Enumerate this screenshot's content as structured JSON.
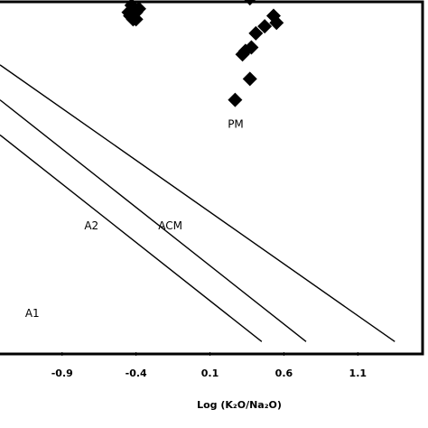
{
  "chart_data": {
    "type": "scatter",
    "title": "",
    "xlabel": "Log (K₂O/Na₂O)",
    "ylabel": "",
    "xlim": [
      -1.32,
      1.55
    ],
    "ylim": [
      0,
      1
    ],
    "grid": false,
    "xticks": [
      {
        "value": -0.9,
        "label": "-0.9"
      },
      {
        "value": -0.4,
        "label": "-0.4"
      },
      {
        "value": 0.1,
        "label": "0.1"
      },
      {
        "value": 0.6,
        "label": "0.6"
      },
      {
        "value": 1.1,
        "label": "1.1"
      }
    ],
    "series": [
      {
        "marker": "diamond",
        "color": "#000000",
        "points": [
          {
            "x": -0.45,
            "y": 0.97
          },
          {
            "x": -0.43,
            "y": 0.99
          },
          {
            "x": -0.4,
            "y": 0.97
          },
          {
            "x": -0.42,
            "y": 0.95
          },
          {
            "x": -0.38,
            "y": 0.98
          },
          {
            "x": -0.44,
            "y": 0.96
          },
          {
            "x": -0.4,
            "y": 0.95
          },
          {
            "x": 0.37,
            "y": 1.01
          },
          {
            "x": 0.47,
            "y": 0.93
          },
          {
            "x": 0.53,
            "y": 0.96
          },
          {
            "x": 0.55,
            "y": 0.94
          },
          {
            "x": 0.41,
            "y": 0.91
          },
          {
            "x": 0.34,
            "y": 0.86
          },
          {
            "x": 0.38,
            "y": 0.87
          },
          {
            "x": 0.32,
            "y": 0.85
          },
          {
            "x": 0.37,
            "y": 0.78
          },
          {
            "x": 0.27,
            "y": 0.72
          }
        ]
      }
    ],
    "lines": [
      {
        "name": "A1",
        "x": [
          -1.32,
          0.45
        ],
        "y": [
          0.62,
          0.03
        ]
      },
      {
        "name": "A2",
        "x": [
          -1.32,
          0.75
        ],
        "y": [
          0.72,
          0.03
        ]
      },
      {
        "name": "ACM",
        "x": [
          -1.32,
          1.35
        ],
        "y": [
          0.82,
          0.03
        ]
      }
    ],
    "annotations": [
      {
        "text": "PM",
        "x": 0.22,
        "y": 0.64
      },
      {
        "text": "A2",
        "x": -0.75,
        "y": 0.35
      },
      {
        "text": "ACM",
        "x": -0.25,
        "y": 0.35
      },
      {
        "text": "A1",
        "x": -1.15,
        "y": 0.1
      }
    ]
  }
}
